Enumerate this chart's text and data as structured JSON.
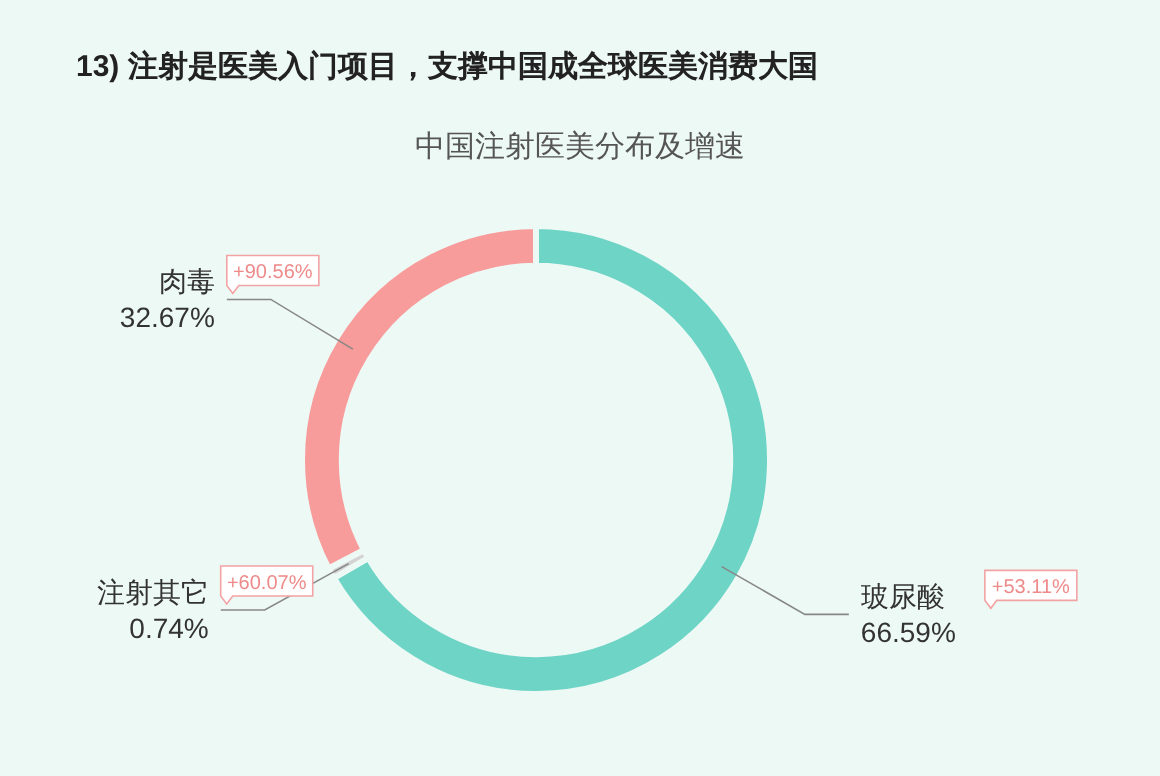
{
  "chart_data": {
    "type": "donut",
    "title": "13) 注射是医美入门项目，支撑中国成全球医美消费大国",
    "subtitle": "中国注射医美分布及增速",
    "categories": [
      "玻尿酸",
      "注射其它",
      "肉毒"
    ],
    "values": [
      66.59,
      0.74,
      32.67
    ],
    "colors": [
      "#6dd4c6",
      "#d3d3d3",
      "#f89b9b"
    ],
    "value_labels": [
      "66.59%",
      "0.74%",
      "32.67%"
    ],
    "annotations": [
      {
        "text": "+53.11%",
        "x": "玻尿酸"
      },
      {
        "text": "+60.07%",
        "x": "注射其它"
      },
      {
        "text": "+90.56%",
        "x": "肉毒"
      }
    ]
  }
}
